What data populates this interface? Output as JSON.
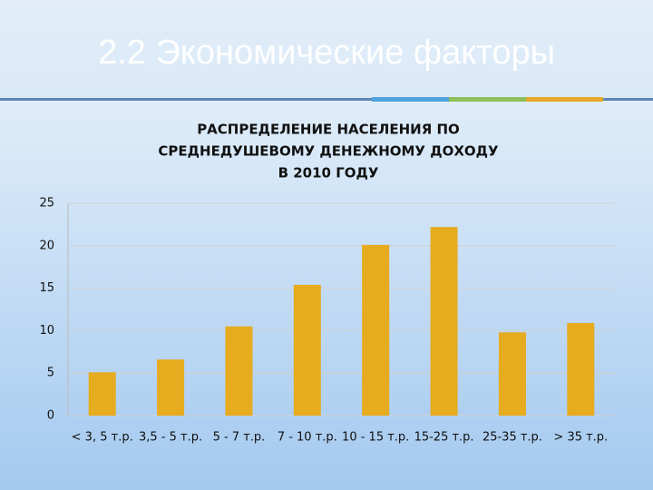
{
  "slide_title": "2.2 Экономические факторы",
  "chart_data": {
    "type": "bar",
    "title": [
      "РАСПРЕДЕЛЕНИЕ НАСЕЛЕНИЯ ПО",
      "СРЕДНЕДУШЕВОМУ ДЕНЕЖНОМУ ДОХОДУ",
      "В 2010 ГОДУ"
    ],
    "categories": [
      "< 3, 5 т.р.",
      "3,5 - 5 т.р.",
      "5 - 7 т.р.",
      "7 - 10 т.р.",
      "10 - 15 т.р.",
      "15-25 т.р.",
      "25-35 т.р.",
      "> 35 т.р."
    ],
    "values": [
      5.1,
      6.6,
      10.5,
      15.4,
      20.1,
      22.2,
      9.8,
      10.9
    ],
    "color": "#e6ab1f",
    "ylim": [
      0,
      25
    ],
    "yticks": [
      0,
      5,
      10,
      15,
      20,
      25
    ],
    "grid": true
  }
}
